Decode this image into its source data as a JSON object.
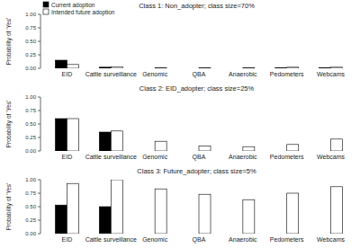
{
  "chart_data": [
    {
      "type": "bar",
      "title": "Class 1: Non_adopter; class size=70%",
      "y_label": "Probability of 'Yes'",
      "categories": [
        "EID",
        "Cattle surveillance",
        "Genomic",
        "QBA",
        "Anaerobic",
        "Pedometers",
        "Webcams"
      ],
      "series": [
        {
          "name": "Current adoption",
          "color": "#000000",
          "values": [
            0.15,
            0.02,
            0,
            0,
            0,
            0.01,
            0.01
          ]
        },
        {
          "name": "Intended future adoption",
          "color": "#ffffff",
          "values": [
            0.07,
            0.03,
            0.01,
            0.01,
            0.01,
            0.02,
            0.02
          ]
        }
      ],
      "legend": "top-left",
      "ylim": [
        0,
        1
      ],
      "yticks": [
        {
          "value": 0,
          "label": "0.00"
        },
        {
          "value": 0.25,
          "label": "0.25"
        },
        {
          "value": 0.5,
          "label": "0.50"
        },
        {
          "value": 0.75,
          "label": "0.75"
        },
        {
          "value": 1,
          "label": "1.00"
        }
      ]
    },
    {
      "type": "bar",
      "title": "Class 2: EID_adopter; class size=25%",
      "y_label": "Probability of 'Yes'",
      "categories": [
        "EID",
        "Cattle surveillance",
        "Genomic",
        "QBA",
        "Anaerobic",
        "Pedometers",
        "Webcams"
      ],
      "series": [
        {
          "color": "#000000",
          "values": [
            0.6,
            0.35,
            0,
            0,
            0,
            0,
            0
          ]
        },
        {
          "color": "#ffffff",
          "values": [
            0.6,
            0.37,
            0.18,
            0.09,
            0.08,
            0.12,
            0.22
          ]
        }
      ],
      "ylim": [
        0,
        1
      ],
      "yticks": [
        {
          "value": 0,
          "label": "0.00"
        },
        {
          "value": 0.25,
          "label": "0.25"
        },
        {
          "value": 0.5,
          "label": "0.50"
        },
        {
          "value": 0.75,
          "label": "0.75"
        },
        {
          "value": 1,
          "label": "1.00"
        }
      ]
    },
    {
      "type": "bar",
      "title": "Class 3: Future_adopter; class size=5%",
      "y_label": "Probability of 'Yes'",
      "categories": [
        "EID",
        "Cattle surveillance",
        "Genomic",
        "QBA",
        "Anaerobic",
        "Pedometers",
        "Webcams"
      ],
      "series": [
        {
          "color": "#000000",
          "values": [
            0.53,
            0.5,
            0,
            0,
            0,
            0,
            0
          ]
        },
        {
          "color": "#ffffff",
          "values": [
            0.93,
            1,
            0.83,
            0.73,
            0.63,
            0.75,
            0.87
          ]
        }
      ],
      "ylim": [
        0,
        1
      ],
      "yticks": [
        {
          "value": 0,
          "label": "0.00"
        },
        {
          "value": 0.25,
          "label": "0.25"
        },
        {
          "value": 0.5,
          "label": "0.50"
        },
        {
          "value": 0.75,
          "label": "0.75"
        },
        {
          "value": 1,
          "label": "1.00"
        }
      ]
    }
  ]
}
